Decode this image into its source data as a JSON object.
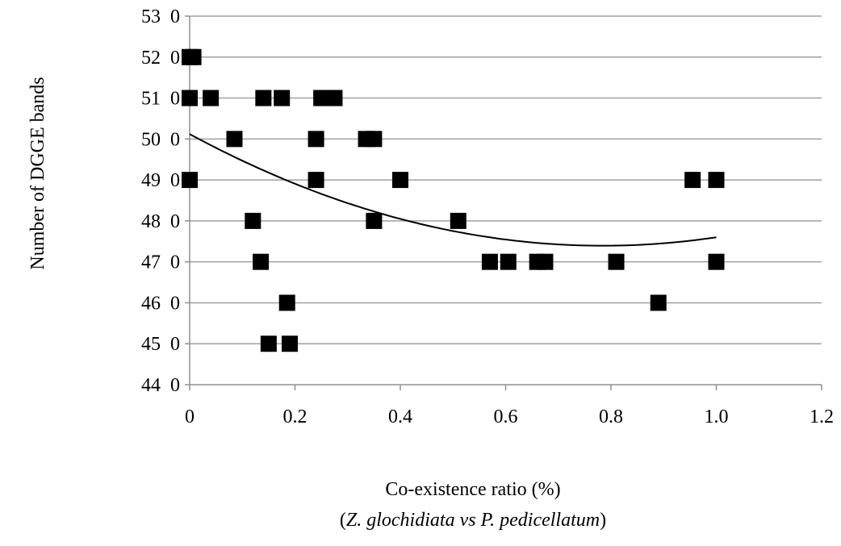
{
  "chart_data": {
    "type": "scatter",
    "ylabel": "Number of DGGE bands",
    "xlabel": "Co-existence ratio (%)",
    "xlabel_sub": {
      "open": "(",
      "species1": "Z. glochidiata",
      "vs": "vs",
      "species2": "P. pedicellatum",
      "close": ")"
    },
    "xlim": [
      0,
      1.2
    ],
    "ylim": [
      44,
      53
    ],
    "x_ticks": [
      "0",
      "0.2",
      "0.4",
      "0.6",
      "0.8",
      "1.0",
      "1.2"
    ],
    "y_ticks": [
      "44",
      "45",
      "46",
      "47",
      "48",
      "49",
      "50",
      "51",
      "52",
      "53"
    ],
    "y_tick_suffix": "0",
    "grid": "horizontal",
    "marker": "filled-square",
    "marker_color": "#000000",
    "grid_color": "#a0a0a0",
    "points": [
      {
        "x": 0.0,
        "y": 52
      },
      {
        "x": 0.007,
        "y": 52
      },
      {
        "x": 0.0,
        "y": 51
      },
      {
        "x": 0.04,
        "y": 51
      },
      {
        "x": 0.14,
        "y": 51
      },
      {
        "x": 0.175,
        "y": 51
      },
      {
        "x": 0.25,
        "y": 51
      },
      {
        "x": 0.275,
        "y": 51
      },
      {
        "x": 0.085,
        "y": 50
      },
      {
        "x": 0.24,
        "y": 50
      },
      {
        "x": 0.335,
        "y": 50
      },
      {
        "x": 0.35,
        "y": 50
      },
      {
        "x": 0.0,
        "y": 49
      },
      {
        "x": 0.24,
        "y": 49
      },
      {
        "x": 0.4,
        "y": 49
      },
      {
        "x": 0.955,
        "y": 49
      },
      {
        "x": 1.0,
        "y": 49
      },
      {
        "x": 0.12,
        "y": 48
      },
      {
        "x": 0.35,
        "y": 48
      },
      {
        "x": 0.51,
        "y": 48
      },
      {
        "x": 0.135,
        "y": 47
      },
      {
        "x": 0.57,
        "y": 47
      },
      {
        "x": 0.605,
        "y": 47
      },
      {
        "x": 0.66,
        "y": 47
      },
      {
        "x": 0.675,
        "y": 47
      },
      {
        "x": 0.81,
        "y": 47
      },
      {
        "x": 1.0,
        "y": 47
      },
      {
        "x": 0.185,
        "y": 46
      },
      {
        "x": 0.89,
        "y": 46
      },
      {
        "x": 0.15,
        "y": 45
      },
      {
        "x": 0.19,
        "y": 45
      }
    ],
    "trendline": {
      "type": "polynomial-2",
      "x_range": [
        0,
        1.0
      ],
      "coefficients": [
        50.12,
        -6.95,
        4.43
      ]
    }
  }
}
